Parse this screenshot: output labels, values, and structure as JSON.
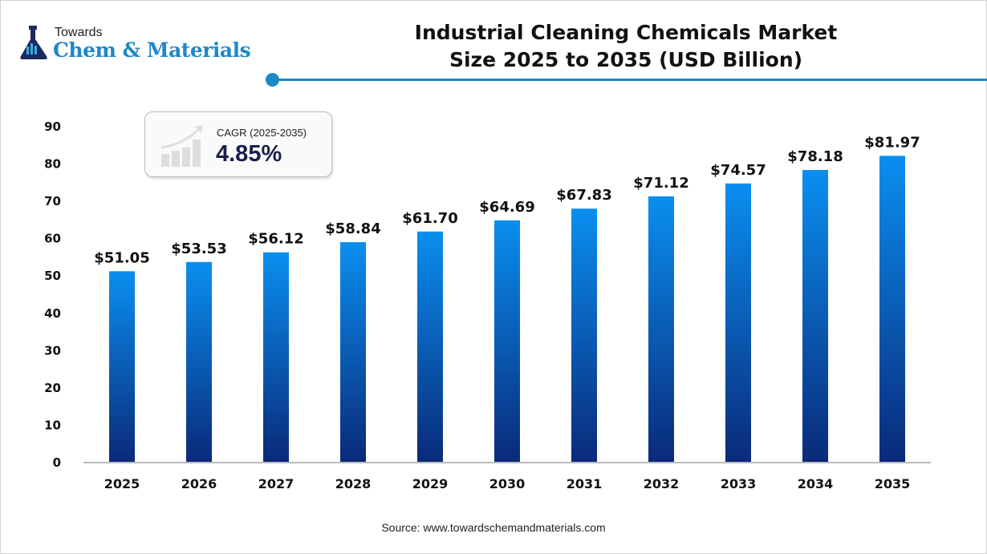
{
  "logo": {
    "line1": "Towards",
    "line2": "Chem & Materials"
  },
  "title_line1": "Industrial Cleaning Chemicals Market",
  "title_line2": "Size 2025 to 2035 (USD Billion)",
  "cagr": {
    "label": "CAGR (2025-2035)",
    "value": "4.85%"
  },
  "source": "Source: www.towardschemandmaterials.com",
  "colors": {
    "accent": "#1e88c8",
    "bar_top": "#0a8ff0",
    "bar_bottom": "#0a2a7a"
  },
  "chart_data": {
    "type": "bar",
    "title": "Industrial Cleaning Chemicals Market Size 2025 to 2035 (USD Billion)",
    "categories": [
      "2025",
      "2026",
      "2027",
      "2028",
      "2029",
      "2030",
      "2031",
      "2032",
      "2033",
      "2034",
      "2035"
    ],
    "values": [
      51.05,
      53.53,
      56.12,
      58.84,
      61.7,
      64.69,
      67.83,
      71.12,
      74.57,
      78.18,
      81.97
    ],
    "data_labels": [
      "$51.05",
      "$53.53",
      "$56.12",
      "$58.84",
      "$61.70",
      "$64.69",
      "$67.83",
      "$71.12",
      "$74.57",
      "$78.18",
      "$81.97"
    ],
    "yticks": [
      0,
      10,
      20,
      30,
      40,
      50,
      60,
      70,
      80,
      90
    ],
    "ylim": [
      0,
      90
    ],
    "grid": false,
    "legend": "none"
  }
}
